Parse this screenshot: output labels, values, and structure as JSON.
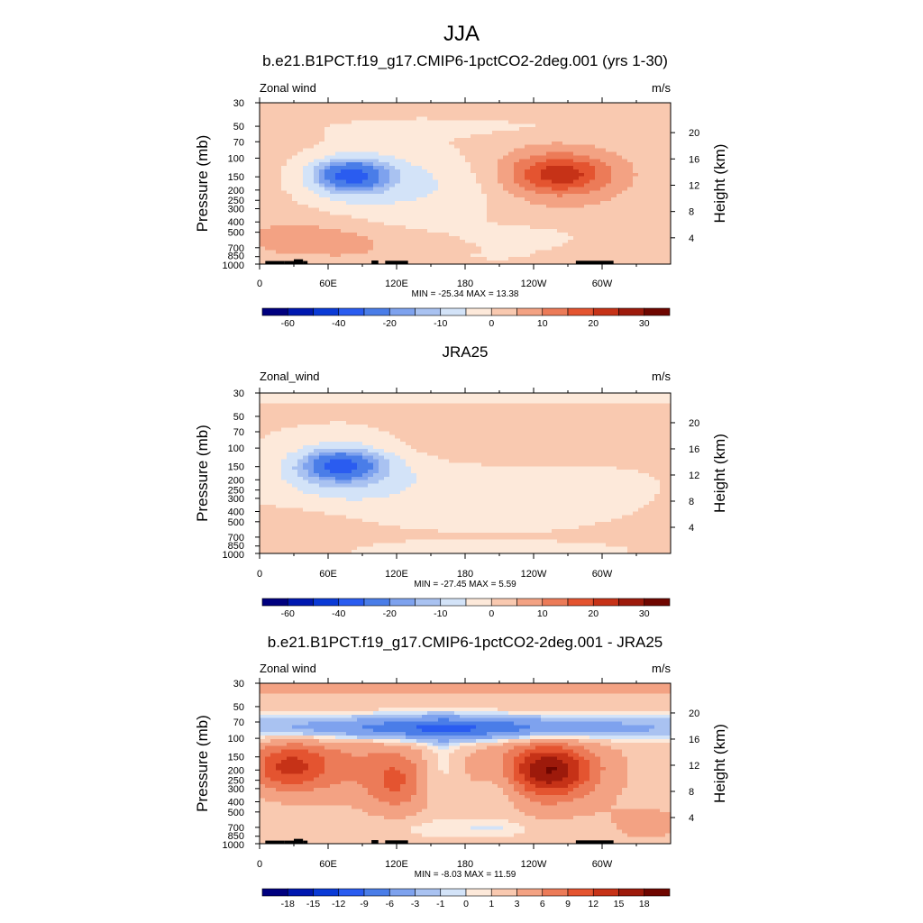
{
  "figure": {
    "title": "JJA"
  },
  "colors": {
    "palette": [
      "#00007f",
      "#0018b0",
      "#0a3ad6",
      "#2a5cf0",
      "#4a7de8",
      "#7ea2ee",
      "#a9c2f1",
      "#d3e3f8",
      "#fde9da",
      "#f9c9b0",
      "#f3a283",
      "#ec7b58",
      "#e45430",
      "#c63217",
      "#9d1a0b",
      "#6f0600"
    ],
    "terrain": "#000000"
  },
  "chart_data": [
    {
      "type": "heatmap",
      "title": "b.e21.B1PCT.f19_g17.CMIP6-1pctCO2-2deg.001 (yrs 1-30)",
      "left_label": "Zonal wind",
      "right_label": "m/s",
      "ylabel": "Pressure (mb)",
      "ylabel_right": "Height (km)",
      "x_tick_labels": [
        "0",
        "60E",
        "120E",
        "180",
        "120W",
        "60W"
      ],
      "y_tick_labels": [
        "30",
        "50",
        "70",
        "100",
        "150",
        "200",
        "250",
        "300",
        "400",
        "500",
        "700",
        "850",
        "1000"
      ],
      "y2_tick_labels": [
        "4",
        "8",
        "12",
        "16",
        "20"
      ],
      "stats": "MIN = -25.34  MAX =  13.38",
      "colorbar_labels": [
        "-60",
        "-40",
        "-20",
        "-10",
        "0",
        "10",
        "20",
        "30"
      ],
      "min": -25.34,
      "max": 13.38
    },
    {
      "type": "heatmap",
      "title": "JRA25",
      "left_label": "Zonal_wind",
      "right_label": "m/s",
      "ylabel": "Pressure (mb)",
      "ylabel_right": "Height (km)",
      "x_tick_labels": [
        "0",
        "60E",
        "120E",
        "180",
        "120W",
        "60W"
      ],
      "y_tick_labels": [
        "30",
        "50",
        "70",
        "100",
        "150",
        "200",
        "250",
        "300",
        "400",
        "500",
        "700",
        "850",
        "1000"
      ],
      "y2_tick_labels": [
        "4",
        "8",
        "12",
        "16",
        "20"
      ],
      "stats": "MIN = -27.45  MAX =   5.59",
      "colorbar_labels": [
        "-60",
        "-40",
        "-20",
        "-10",
        "0",
        "10",
        "20",
        "30"
      ],
      "min": -27.45,
      "max": 5.59
    },
    {
      "type": "heatmap",
      "title": "b.e21.B1PCT.f19_g17.CMIP6-1pctCO2-2deg.001 - JRA25",
      "left_label": "Zonal wind",
      "right_label": "m/s",
      "ylabel": "Pressure (mb)",
      "ylabel_right": "Height (km)",
      "x_tick_labels": [
        "0",
        "60E",
        "120E",
        "180",
        "120W",
        "60W"
      ],
      "y_tick_labels": [
        "30",
        "50",
        "70",
        "100",
        "150",
        "200",
        "250",
        "300",
        "400",
        "500",
        "700",
        "850",
        "1000"
      ],
      "y2_tick_labels": [
        "4",
        "8",
        "12",
        "16",
        "20"
      ],
      "stats": "MIN = -8.03  MAX = 11.59",
      "colorbar_labels": [
        "-18",
        "-15",
        "-12",
        "-9",
        "-6",
        "-3",
        "-1",
        "0",
        "1",
        "3",
        "6",
        "9",
        "12",
        "15",
        "18"
      ],
      "min": -8.03,
      "max": 11.59
    }
  ]
}
